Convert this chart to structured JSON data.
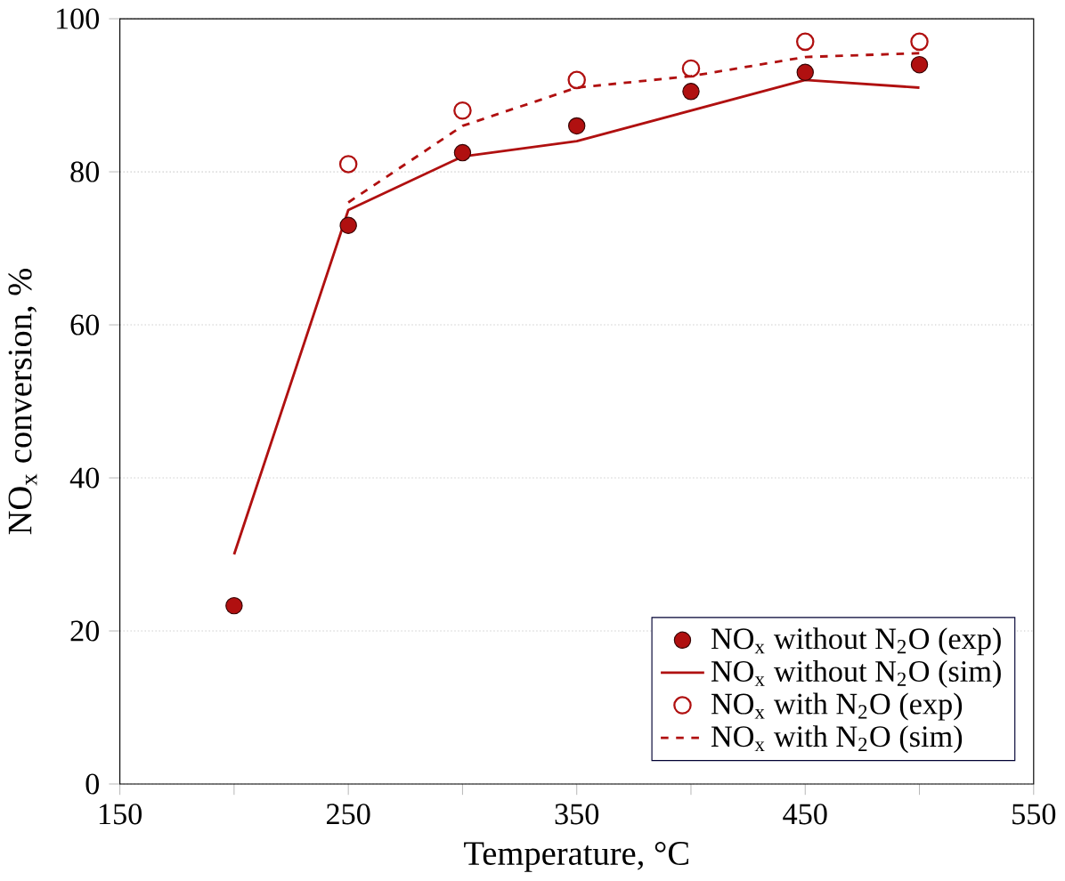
{
  "chart_data": {
    "type": "scatter",
    "xlabel": "Temperature, °C",
    "ylabel": "NO$_{x}$ conversion, %",
    "xlim": [
      150,
      550
    ],
    "ylim": [
      0,
      100
    ],
    "xticks": [
      150,
      {
        "value": 200,
        "label": null
      },
      250,
      {
        "value": 300,
        "label": null
      },
      350,
      {
        "value": 400,
        "label": null
      },
      450,
      {
        "value": 500,
        "label": null
      },
      550
    ],
    "yticks": [
      0,
      20,
      40,
      60,
      80,
      100
    ],
    "grid": "y",
    "legend": "bottom right",
    "series": [
      {
        "name": "NO$_{x}$ without N$_{2}$O (exp)",
        "marker": "circle",
        "color": "#b01010",
        "x": [
          200,
          250,
          300,
          350,
          400,
          450,
          500
        ],
        "values": [
          23.3,
          73,
          82.5,
          86,
          90.5,
          93,
          94
        ]
      },
      {
        "name": "NO$_{x}$ without N$_{2}$O (sim)",
        "type": "line",
        "line_style": "solid",
        "color": "#b01010",
        "x": [
          200,
          250,
          300,
          350,
          400,
          450,
          500
        ],
        "values": [
          30,
          75,
          82,
          84,
          88,
          92,
          91
        ]
      },
      {
        "name": "NO$_{x}$ with N$_{2}$O (exp)",
        "marker": "open circle",
        "color": "#b01010",
        "x": [
          250,
          300,
          350,
          400,
          450,
          500
        ],
        "values": [
          81,
          88,
          92,
          93.5,
          97,
          97
        ]
      },
      {
        "name": "NO$_{x}$ with N$_{2}$O (sim)",
        "type": "line",
        "line_style": "dashed",
        "color": "#b01010",
        "x": [
          250,
          300,
          350,
          400,
          450,
          500
        ],
        "values": [
          76,
          86,
          91,
          92.5,
          95,
          95.5
        ]
      }
    ]
  }
}
